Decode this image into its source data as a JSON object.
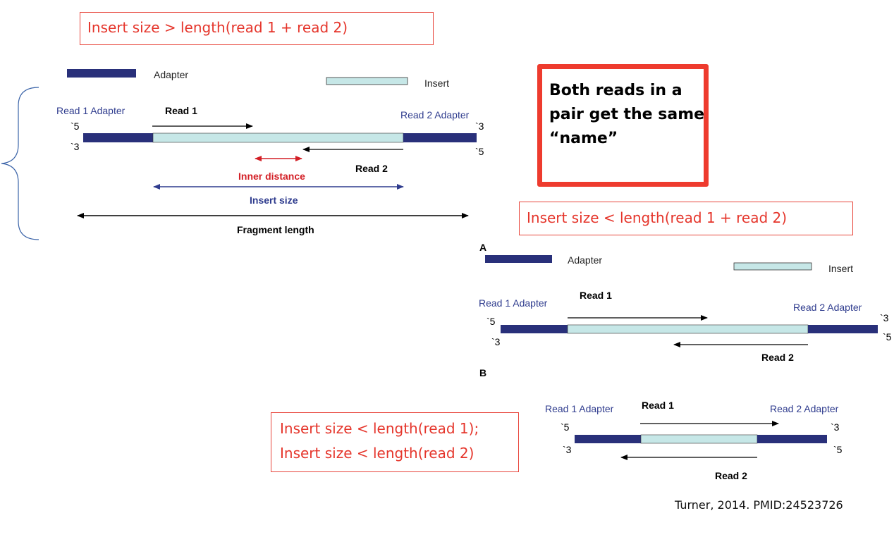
{
  "top_label": "Insert size > length(read 1 + read 2)",
  "mid_label": "Insert size < length(read 1 + read 2)",
  "bottom_label_line1": "Insert size < length(read 1);",
  "bottom_label_line2": "Insert size < length(read 2)",
  "callout": "Both reads in a pair  get the same “name”",
  "citation": "Turner, 2014. PMID:24523726",
  "legend": {
    "adapter": "Adapter",
    "insert": "Insert"
  },
  "diagram_common": {
    "read1_adapter": "Read 1 Adapter",
    "read2_adapter": "Read 2 Adapter",
    "read1": "Read 1",
    "read2": "Read 2",
    "end5": "`5",
    "end3": "`3"
  },
  "diagram_top": {
    "inner_distance": "Inner distance",
    "insert_size": "Insert size",
    "fragment_length": "Fragment length"
  },
  "panel_a": "A",
  "panel_b": "B",
  "colors": {
    "adapter": "#29307a",
    "insert": "#c6e7e7",
    "inner_distance": "#d31f26",
    "insert_size": "#2f3c8e",
    "brace": "#3a63a8",
    "label_red": "#e5352b"
  }
}
